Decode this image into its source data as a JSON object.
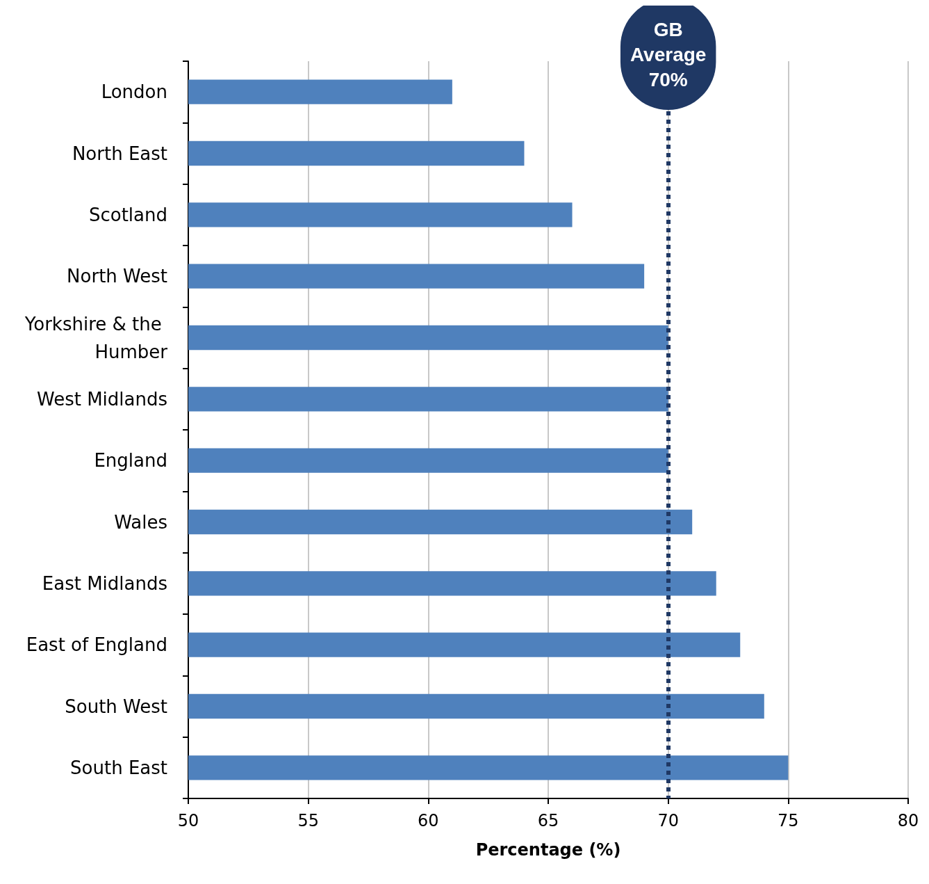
{
  "chart_data": {
    "type": "bar",
    "orientation": "horizontal",
    "xlabel": "Percentage (%)",
    "categories": [
      "London",
      "North East",
      "Scotland",
      "North West",
      "Yorkshire & the Humber",
      "West Midlands",
      "England",
      "Wales",
      "East Midlands",
      "East of England",
      "South West",
      "South East"
    ],
    "values": [
      61,
      64,
      66,
      69,
      70,
      70,
      70,
      71,
      72,
      73,
      74,
      75
    ],
    "color": "#4f81bd",
    "xlim": [
      50,
      80
    ],
    "xticks": [
      50,
      55,
      60,
      65,
      70,
      75,
      80
    ],
    "grid": "x",
    "ref_lines": [
      {
        "axis": "x",
        "value": 70,
        "label": "GB\nAverage\n70%",
        "color": "#1f3864",
        "line_style": "dotted"
      }
    ]
  }
}
